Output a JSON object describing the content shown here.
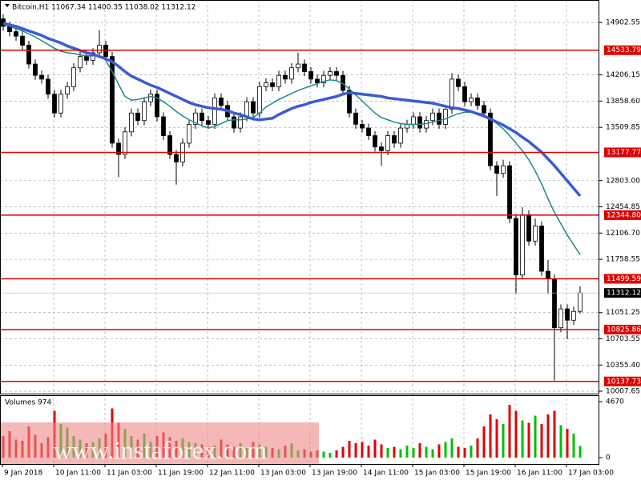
{
  "chart_data": {
    "type": "candlestick",
    "title": "Bitcoin,H1  11067.34 11400.35 11038.02 11312.12",
    "volume_title": "Volumes 974",
    "watermark": "www.instaforex.com",
    "ylim": [
      9976,
      15200
    ],
    "yticks": [
      14902.55,
      14206.15,
      {
        "value": 13858.6,
        "label": "13858.60"
      },
      13509.85,
      {
        "value": 12803,
        "label": "12803.00"
      },
      12454.85,
      {
        "value": 12106.7,
        "label": "12106.70"
      },
      11758.55,
      11051.25,
      10703.55,
      {
        "value": 10355.4,
        "label": "10355.40"
      },
      10007.65
    ],
    "vol_ylim": [
      0,
      4670
    ],
    "vol_yticks": [
      0,
      4670
    ],
    "x_labels": [
      "9 Jan 2018",
      "10 Jan 11:00",
      "11 Jan 03:00",
      "11 Jan 19:00",
      "12 Jan 11:00",
      "13 Jan 03:00",
      "13 Jan 19:00",
      "14 Jan 11:00",
      "15 Jan 03:00",
      "15 Jan 19:00",
      "16 Jan 11:00",
      "17 Jan 03:00"
    ],
    "levels": [
      14533.79,
      13177.77,
      12344.8,
      11499.59,
      10825.86,
      10137.73
    ],
    "level_labels": [
      "14533.79",
      "13177.77",
      "12344.80",
      "11499.59",
      "10825.86",
      "10137.73"
    ],
    "level_color": "#e00000",
    "last_price": 11312.12,
    "up_color": "#00c000",
    "down_color": "#e00000",
    "grid": true,
    "open": [
      14950,
      14850,
      14780,
      14720,
      14600,
      14350,
      14200,
      14150,
      13950,
      13700,
      13950,
      14050,
      14300,
      14450,
      14400,
      14500,
      14600,
      14450,
      13300,
      13150,
      13450,
      13700,
      13600,
      13850,
      13950,
      13650,
      13400,
      13150,
      13050,
      13300,
      13550,
      13700,
      13600,
      13550,
      13900,
      13800,
      13650,
      13500,
      13650,
      13850,
      13700,
      14050,
      14100,
      14050,
      14200,
      14150,
      14300,
      14350,
      14250,
      14150,
      14100,
      14200,
      14250,
      14200,
      14000,
      13700,
      13550,
      13500,
      13400,
      13250,
      13200,
      13400,
      13300,
      13500,
      13550,
      13650,
      13500,
      13600,
      13700,
      13550,
      13750,
      14150,
      14050,
      13850,
      13900,
      13800,
      13700,
      13000,
      12900,
      13000,
      12300,
      11550,
      12350,
      12000,
      12200,
      11600,
      11500,
      10850,
      11100,
      10950,
      11067.34
    ],
    "high": [
      15010,
      14910,
      14840,
      14780,
      14660,
      14410,
      14260,
      14210,
      14010,
      14010,
      14110,
      14360,
      14510,
      14510,
      14560,
      14800,
      14660,
      14510,
      13360,
      13510,
      13760,
      13760,
      13910,
      14010,
      14010,
      13710,
      13460,
      13210,
      13360,
      13610,
      13760,
      13760,
      13660,
      13960,
      13960,
      13860,
      13710,
      13710,
      13910,
      13910,
      14110,
      14160,
      14160,
      14260,
      14260,
      14360,
      14500,
      14410,
      14310,
      14210,
      14260,
      14310,
      14310,
      14260,
      14060,
      13760,
      13610,
      13560,
      13460,
      13310,
      13460,
      13460,
      13560,
      13610,
      13710,
      13710,
      13660,
      13760,
      13760,
      13810,
      14230,
      14210,
      14110,
      13960,
      13960,
      13860,
      13760,
      13060,
      13080,
      13060,
      12360,
      12450,
      12410,
      12300,
      12260,
      11750,
      11560,
      11160,
      11160,
      11130,
      11400.35
    ],
    "low": [
      14790,
      14720,
      14660,
      14540,
      14290,
      14140,
      14090,
      13890,
      13640,
      13640,
      13890,
      13990,
      14240,
      14340,
      14340,
      14440,
      14390,
      13240,
      12850,
      13090,
      13390,
      13540,
      13540,
      13790,
      13590,
      13340,
      13090,
      12750,
      12990,
      13240,
      13490,
      13540,
      13490,
      13490,
      13740,
      13590,
      13440,
      13440,
      13590,
      13640,
      13640,
      13990,
      13990,
      13990,
      14090,
      14090,
      14240,
      14190,
      14090,
      14040,
      14040,
      14140,
      14140,
      13940,
      13640,
      13490,
      13440,
      13340,
      13190,
      13000,
      13140,
      13240,
      13240,
      13440,
      13490,
      13440,
      13440,
      13540,
      13490,
      13490,
      13690,
      13990,
      13790,
      13790,
      13740,
      13640,
      12940,
      12600,
      12840,
      12240,
      11300,
      11490,
      11940,
      11940,
      11540,
      11300,
      10150,
      10790,
      10700,
      10890,
      11038.02
    ],
    "close": [
      14850,
      14780,
      14720,
      14600,
      14350,
      14200,
      14150,
      13950,
      13700,
      13950,
      14050,
      14300,
      14450,
      14400,
      14500,
      14600,
      14450,
      13300,
      13150,
      13450,
      13700,
      13600,
      13850,
      13950,
      13650,
      13400,
      13150,
      13050,
      13300,
      13550,
      13700,
      13600,
      13550,
      13900,
      13800,
      13650,
      13500,
      13650,
      13850,
      13700,
      14050,
      14100,
      14050,
      14200,
      14150,
      14300,
      14350,
      14250,
      14150,
      14100,
      14200,
      14250,
      14200,
      14000,
      13700,
      13550,
      13500,
      13400,
      13250,
      13200,
      13400,
      13300,
      13500,
      13550,
      13650,
      13500,
      13600,
      13700,
      13550,
      13750,
      14150,
      14050,
      13850,
      13900,
      13800,
      13700,
      13000,
      12900,
      13000,
      12300,
      11550,
      12350,
      12000,
      12200,
      11600,
      11500,
      10850,
      11100,
      10950,
      11067.34,
      11312.12
    ],
    "volumes": [
      1800,
      2200,
      1500,
      1400,
      2600,
      1900,
      1200,
      1700,
      3900,
      2800,
      2500,
      1800,
      1500,
      1200,
      1300,
      1600,
      2000,
      4100,
      2900,
      2400,
      1800,
      1500,
      2000,
      1300,
      1800,
      2100,
      1700,
      1400,
      1600,
      1300,
      1200,
      1100,
      900,
      1000,
      1500,
      1100,
      900,
      1200,
      800,
      1300,
      1100,
      900,
      800,
      700,
      1000,
      1200,
      600,
      700,
      500,
      600,
      500,
      400,
      600,
      900,
      1400,
      1200,
      1300,
      1000,
      1500,
      1100,
      800,
      900,
      700,
      1000,
      800,
      1200,
      900,
      700,
      1100,
      1300,
      1600,
      900,
      800,
      1000,
      1600,
      2600,
      3600,
      3200,
      2800,
      4400,
      3900,
      3100,
      2900,
      3500,
      2800,
      3600,
      3900,
      2700,
      2400,
      2000,
      974
    ],
    "moving_averages": [
      {
        "color": "#1a8a8a",
        "width": 1.5,
        "values": [
          14880,
          14850,
          14820,
          14790,
          14750,
          14710,
          14660,
          14610,
          14560,
          14520,
          14500,
          14490,
          14470,
          14460,
          14460,
          14460,
          14400,
          14250,
          14080,
          13920,
          13870,
          13880,
          13900,
          13920,
          13900,
          13850,
          13790,
          13720,
          13660,
          13610,
          13570,
          13530,
          13500,
          13520,
          13560,
          13600,
          13610,
          13610,
          13620,
          13640,
          13700,
          13780,
          13830,
          13880,
          13920,
          13960,
          14000,
          14030,
          14060,
          14090,
          14120,
          14140,
          14130,
          14090,
          14020,
          13940,
          13860,
          13780,
          13700,
          13640,
          13610,
          13580,
          13560,
          13550,
          13550,
          13550,
          13560,
          13580,
          13600,
          13620,
          13660,
          13690,
          13710,
          13710,
          13700,
          13680,
          13620,
          13560,
          13490,
          13400,
          13300,
          13200,
          13080,
          12930,
          12760,
          12560,
          12380,
          12230,
          12080,
          11950,
          11820
        ]
      },
      {
        "color": "#3a5bd6",
        "width": 3.5,
        "values": [
          14890,
          14870,
          14850,
          14820,
          14790,
          14760,
          14730,
          14690,
          14660,
          14630,
          14590,
          14560,
          14530,
          14500,
          14480,
          14450,
          14420,
          14380,
          14320,
          14250,
          14190,
          14150,
          14110,
          14070,
          14040,
          14000,
          13960,
          13920,
          13880,
          13840,
          13810,
          13790,
          13770,
          13760,
          13750,
          13730,
          13700,
          13680,
          13650,
          13620,
          13610,
          13620,
          13630,
          13680,
          13720,
          13760,
          13790,
          13810,
          13840,
          13860,
          13880,
          13900,
          13920,
          13950,
          13970,
          13960,
          13950,
          13940,
          13930,
          13920,
          13900,
          13890,
          13880,
          13870,
          13860,
          13850,
          13840,
          13830,
          13810,
          13790,
          13770,
          13760,
          13740,
          13720,
          13690,
          13660,
          13620,
          13580,
          13540,
          13490,
          13440,
          13380,
          13320,
          13250,
          13180,
          13090,
          13000,
          12900,
          12800,
          12700,
          12600
        ]
      }
    ]
  }
}
